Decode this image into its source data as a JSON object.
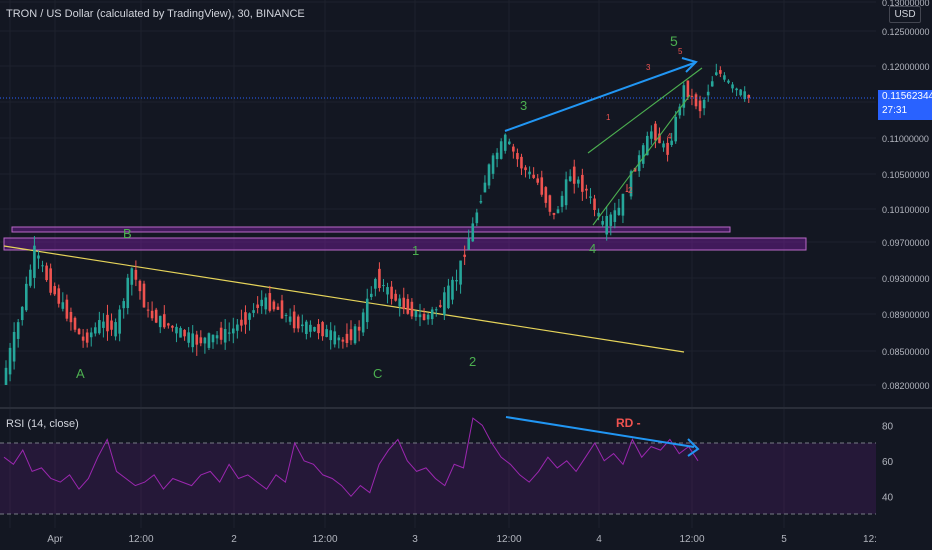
{
  "header": {
    "symbol_title": "TRON / US Dollar (calculated by TradingView), 30, BINANCE",
    "currency": "USD",
    "last_price": "0.11562344",
    "countdown": "27:31"
  },
  "rsi_panel": {
    "title": "RSI (14, close)"
  },
  "annotations": {
    "wave_b": "B",
    "wave_a": "A",
    "wave_c": "C",
    "wave_1": "1",
    "wave_2": "2",
    "wave_3": "3",
    "wave_4": "4",
    "wave_5": "5",
    "sub_1": "1",
    "sub_2": "2",
    "sub_3": "3",
    "sub_4": "4",
    "sub_5": "5",
    "rd": "RD -"
  },
  "colors": {
    "background": "#131722",
    "up": "#26a69a",
    "down": "#ef5350",
    "rsi_line": "#9c27b0",
    "zone_fill": "#7b1fa2",
    "wave_label": "#4caf50",
    "arrow": "#2196f3",
    "trendline": "#e6d45a"
  },
  "chart_data": [
    {
      "type": "candlestick",
      "title": "TRON / US Dollar (calculated by TradingView), 30, BINANCE",
      "x_ticks": [
        "Apr",
        "12:00",
        "2",
        "12:00",
        "3",
        "12:00",
        "4",
        "12:00",
        "5",
        "12:"
      ],
      "y_ticks": [
        0.082,
        0.085,
        0.089,
        0.093,
        0.097,
        0.101,
        0.105,
        0.11,
        0.115,
        0.12,
        0.125,
        0.13
      ],
      "y_unit": "USD",
      "last_price": 0.11562344,
      "ohlc_path": [
        [
          0.082,
          0.088
        ],
        [
          0.088,
          0.096
        ],
        [
          0.096,
          0.092
        ],
        [
          0.092,
          0.089
        ],
        [
          0.089,
          0.086
        ],
        [
          0.086,
          0.088
        ],
        [
          0.088,
          0.0875
        ],
        [
          0.0875,
          0.094
        ],
        [
          0.094,
          0.089
        ],
        [
          0.089,
          0.088
        ],
        [
          0.088,
          0.087
        ],
        [
          0.087,
          0.086
        ],
        [
          0.086,
          0.0865
        ],
        [
          0.0865,
          0.087
        ],
        [
          0.087,
          0.0885
        ],
        [
          0.0885,
          0.0905
        ],
        [
          0.0905,
          0.0895
        ],
        [
          0.0895,
          0.088
        ],
        [
          0.088,
          0.0875
        ],
        [
          0.0875,
          0.087
        ],
        [
          0.087,
          0.086
        ],
        [
          0.086,
          0.0875
        ],
        [
          0.0875,
          0.093
        ],
        [
          0.093,
          0.091
        ],
        [
          0.091,
          0.0895
        ],
        [
          0.0895,
          0.0885
        ],
        [
          0.0885,
          0.09
        ],
        [
          0.09,
          0.093
        ],
        [
          0.093,
          0.099
        ],
        [
          0.099,
          0.106
        ],
        [
          0.106,
          0.11
        ],
        [
          0.11,
          0.106
        ],
        [
          0.106,
          0.104
        ],
        [
          0.104,
          0.1
        ],
        [
          0.1,
          0.105
        ],
        [
          0.105,
          0.103
        ],
        [
          0.103,
          0.099
        ],
        [
          0.099,
          0.101
        ],
        [
          0.101,
          0.106
        ],
        [
          0.106,
          0.111
        ],
        [
          0.111,
          0.108
        ],
        [
          0.108,
          0.117
        ],
        [
          0.117,
          0.114
        ],
        [
          0.114,
          0.1195
        ],
        [
          0.1195,
          0.117
        ],
        [
          0.117,
          0.1156
        ]
      ],
      "support_zones": [
        [
          0.099,
          0.0995
        ],
        [
          0.0968,
          0.0978
        ]
      ],
      "trendline": [
        [
          0.096,
          0.0855
        ]
      ]
    },
    {
      "type": "line",
      "title": "RSI (14, close)",
      "y_ticks": [
        40,
        60,
        80
      ],
      "bands": [
        30,
        70
      ],
      "series": [
        {
          "values": [
            62,
            58,
            66,
            54,
            56,
            50,
            48,
            52,
            44,
            50,
            62,
            72,
            54,
            50,
            46,
            48,
            52,
            44,
            50,
            48,
            46,
            52,
            54,
            48,
            58,
            50,
            52,
            48,
            44,
            52,
            48,
            70,
            60,
            58,
            52,
            50,
            46,
            40,
            46,
            42,
            58,
            66,
            72,
            60,
            54,
            56,
            50,
            46,
            58,
            56,
            84,
            80,
            70,
            62,
            58,
            52,
            48,
            54,
            62,
            56,
            60,
            54,
            62,
            70,
            60,
            64,
            58,
            72,
            62,
            68,
            66,
            72,
            64,
            68,
            60
          ]
        }
      ]
    }
  ]
}
